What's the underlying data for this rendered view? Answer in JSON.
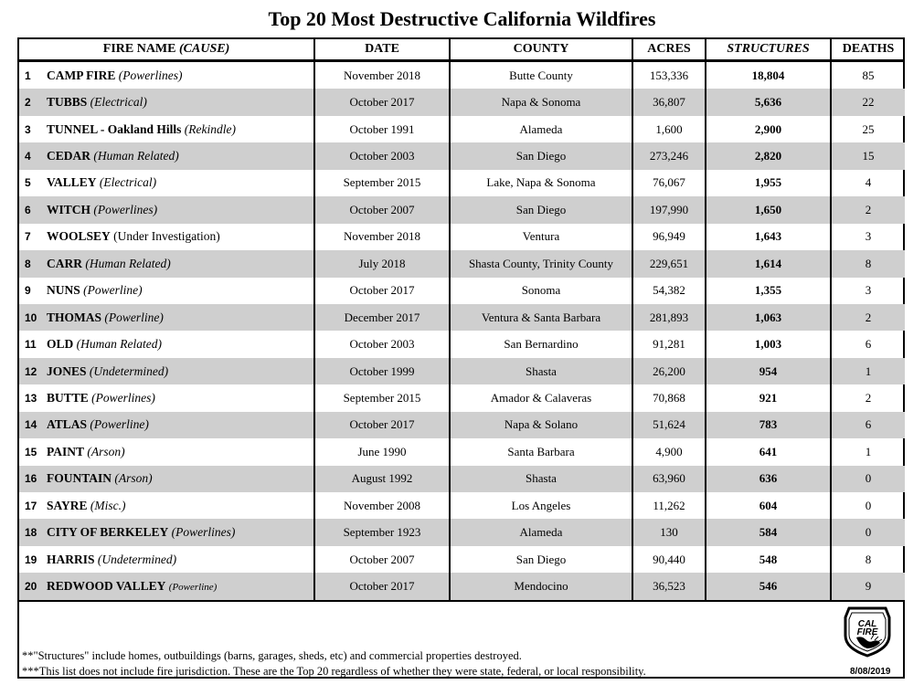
{
  "title": "Top 20 Most Destructive California Wildfires",
  "headers": {
    "name": "FIRE NAME",
    "name_cause": "(CAUSE)",
    "date": "DATE",
    "county": "COUNTY",
    "acres": "ACRES",
    "structures": "STRUCTURES",
    "deaths": "DEATHS"
  },
  "rows": [
    {
      "rank": "1",
      "name": "CAMP FIRE",
      "cause": "(Powerlines)",
      "cause_style": "italic",
      "date": "November 2018",
      "county": "Butte County",
      "acres": "153,336",
      "structures": "18,804",
      "deaths": "85"
    },
    {
      "rank": "2",
      "name": "TUBBS",
      "cause": "(Electrical)",
      "cause_style": "italic",
      "date": "October 2017",
      "county": "Napa & Sonoma",
      "acres": "36,807",
      "structures": "5,636",
      "deaths": "22"
    },
    {
      "rank": "3",
      "name": "TUNNEL - Oakland Hills",
      "cause": "(Rekindle)",
      "cause_style": "italic",
      "date": "October 1991",
      "county": "Alameda",
      "acres": "1,600",
      "structures": "2,900",
      "deaths": "25"
    },
    {
      "rank": "4",
      "name": "CEDAR",
      "cause": "(Human Related)",
      "cause_style": "italic",
      "date": "October 2003",
      "county": "San Diego",
      "acres": "273,246",
      "structures": "2,820",
      "deaths": "15"
    },
    {
      "rank": "5",
      "name": "VALLEY",
      "cause": "(Electrical)",
      "cause_style": "italic",
      "date": "September 2015",
      "county": "Lake, Napa & Sonoma",
      "acres": "76,067",
      "structures": "1,955",
      "deaths": "4"
    },
    {
      "rank": "6",
      "name": "WITCH",
      "cause": "(Powerlines)",
      "cause_style": "italic",
      "date": "October 2007",
      "county": "San Diego",
      "acres": "197,990",
      "structures": "1,650",
      "deaths": "2"
    },
    {
      "rank": "7",
      "name": "WOOLSEY",
      "cause": "(Under Investigation)",
      "cause_style": "normal",
      "date": "November 2018",
      "county": "Ventura",
      "acres": "96,949",
      "structures": "1,643",
      "deaths": "3"
    },
    {
      "rank": "8",
      "name": "CARR",
      "cause": "(Human Related)",
      "cause_style": "italic",
      "date": "July 2018",
      "county": "Shasta County, Trinity County",
      "acres": "229,651",
      "structures": "1,614",
      "deaths": "8"
    },
    {
      "rank": "9",
      "name": "NUNS",
      "cause": "(Powerline)",
      "cause_style": "italic",
      "date": "October 2017",
      "county": "Sonoma",
      "acres": "54,382",
      "structures": "1,355",
      "deaths": "3"
    },
    {
      "rank": "10",
      "name": "THOMAS",
      "cause": "(Powerline)",
      "cause_style": "italic",
      "date": "December 2017",
      "county": "Ventura & Santa Barbara",
      "acres": "281,893",
      "structures": "1,063",
      "deaths": "2"
    },
    {
      "rank": "11",
      "name": "OLD",
      "cause": "(Human Related)",
      "cause_style": "italic",
      "date": "October 2003",
      "county": "San Bernardino",
      "acres": "91,281",
      "structures": "1,003",
      "deaths": "6"
    },
    {
      "rank": "12",
      "name": "JONES",
      "cause": "(Undetermined)",
      "cause_style": "italic",
      "date": "October 1999",
      "county": "Shasta",
      "acres": "26,200",
      "structures": "954",
      "deaths": "1"
    },
    {
      "rank": "13",
      "name": "BUTTE",
      "cause": "(Powerlines)",
      "cause_style": "italic",
      "date": "September 2015",
      "county": "Amador & Calaveras",
      "acres": "70,868",
      "structures": "921",
      "deaths": "2"
    },
    {
      "rank": "14",
      "name": "ATLAS",
      "cause": "(Powerline)",
      "cause_style": "italic",
      "date": "October 2017",
      "county": "Napa & Solano",
      "acres": "51,624",
      "structures": "783",
      "deaths": "6"
    },
    {
      "rank": "15",
      "name": "PAINT",
      "cause": "(Arson)",
      "cause_style": "italic",
      "date": "June 1990",
      "county": "Santa Barbara",
      "acres": "4,900",
      "structures": "641",
      "deaths": "1"
    },
    {
      "rank": "16",
      "name": "FOUNTAIN",
      "cause": "(Arson)",
      "cause_style": "italic",
      "date": "August 1992",
      "county": "Shasta",
      "acres": "63,960",
      "structures": "636",
      "deaths": "0"
    },
    {
      "rank": "17",
      "name": "SAYRE",
      "cause": "(Misc.)",
      "cause_style": "italic",
      "date": "November 2008",
      "county": "Los Angeles",
      "acres": "11,262",
      "structures": "604",
      "deaths": "0"
    },
    {
      "rank": "18",
      "name": "CITY OF BERKELEY",
      "cause": "(Powerlines)",
      "cause_style": "italic",
      "date": "September 1923",
      "county": "Alameda",
      "acres": "130",
      "structures": "584",
      "deaths": "0"
    },
    {
      "rank": "19",
      "name": "HARRIS",
      "cause": "(Undetermined)",
      "cause_style": "italic",
      "date": "October 2007",
      "county": "San Diego",
      "acres": "90,440",
      "structures": "548",
      "deaths": "8"
    },
    {
      "rank": "20",
      "name": "REDWOOD VALLEY",
      "cause": "(Powerline)",
      "cause_style": "italic-small",
      "date": "October 2017",
      "county": "Mendocino",
      "acres": "36,523",
      "structures": "546",
      "deaths": "9"
    }
  ],
  "notes": {
    "structures": "**\"Structures\" include homes, outbuildings (barns, garages, sheds, etc) and commercial properties destroyed.",
    "jurisdiction": "***This list does not include fire jurisdiction.  These are the Top 20 regardless of whether they were state, federal, or local responsibility."
  },
  "logo": {
    "name": "cal-fire-seal-icon",
    "line1": "CAL",
    "line2": "FIRE"
  },
  "date_stamp": "8/08/2019",
  "colors": {
    "stripe": "#cfcfcf",
    "border": "#000000"
  }
}
